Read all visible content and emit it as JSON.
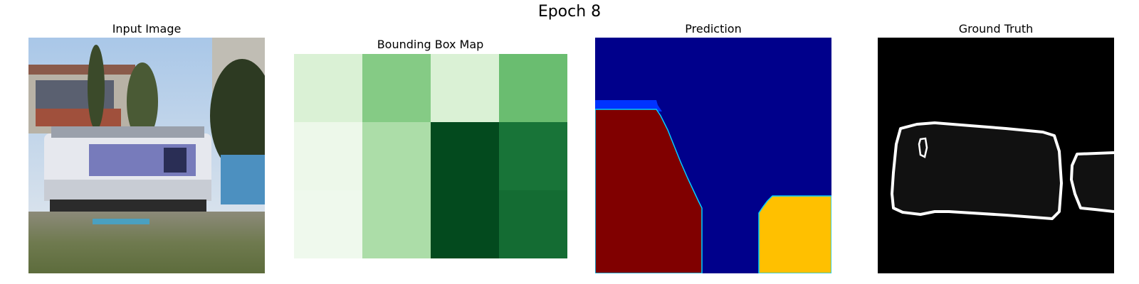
{
  "figure": {
    "title": "Epoch 8"
  },
  "panels": [
    {
      "title": "Input Image"
    },
    {
      "title": "Bounding Box Map"
    },
    {
      "title": "Prediction"
    },
    {
      "title": "Ground Truth"
    }
  ],
  "bbox_map": {
    "colormap": "greens",
    "grid": [
      [
        0.15,
        0.45,
        0.15,
        0.53
      ],
      [
        0.05,
        0.33,
        0.98,
        0.83
      ],
      [
        0.04,
        0.33,
        0.98,
        0.86
      ]
    ]
  },
  "prediction": {
    "colormap": "jet",
    "regions": [
      "dark-red",
      "navy",
      "yellow",
      "blue"
    ]
  },
  "ground_truth": {
    "colormap": "gray",
    "objects": [
      "bus",
      "bus"
    ]
  },
  "colors": {
    "navy": "#00008b",
    "dark_red": "#800000",
    "yellow": "#ffc000",
    "blue": "#0033ff",
    "cyan": "#00cfff",
    "black": "#000000",
    "dark_gray": "#111111",
    "white": "#ffffff"
  }
}
